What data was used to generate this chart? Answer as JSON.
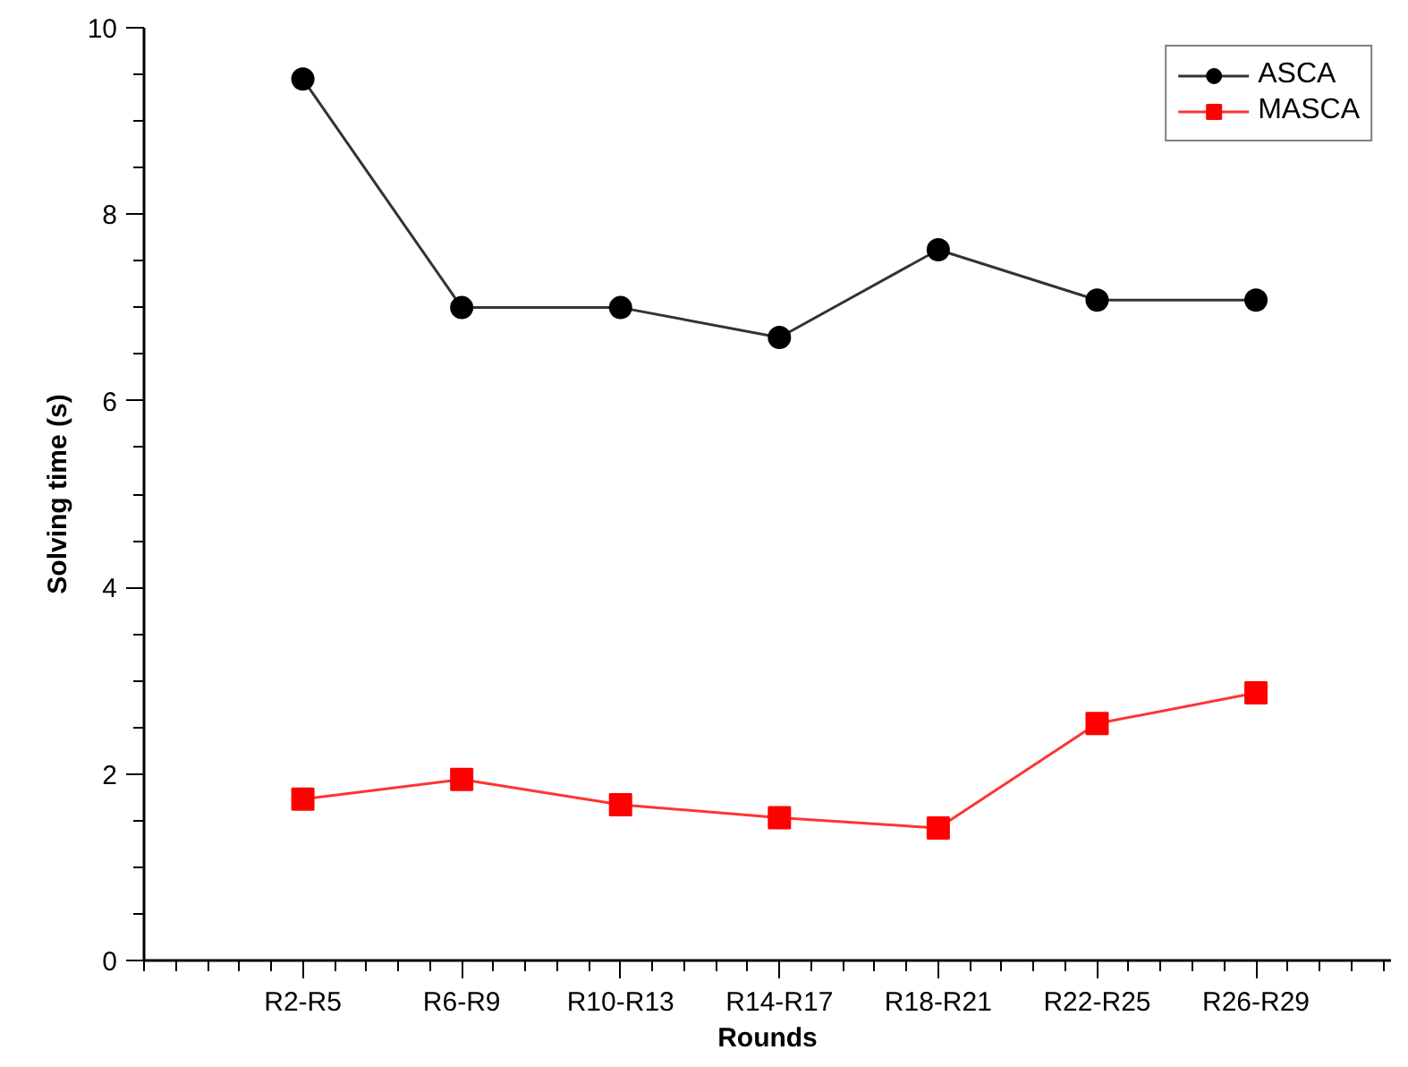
{
  "chart_data": {
    "type": "line",
    "xlabel": "Rounds",
    "ylabel": "Solving time (s)",
    "categories": [
      "R2-R5",
      "R6-R9",
      "R10-R13",
      "R14-R17",
      "R18-R21",
      "R22-R25",
      "R26-R29"
    ],
    "series": [
      {
        "name": "ASCA",
        "color": "#000000",
        "marker": "circle",
        "values": [
          9.45,
          7.0,
          7.0,
          6.68,
          7.62,
          7.08,
          7.08
        ]
      },
      {
        "name": "MASCA",
        "color": "#ff0000",
        "marker": "square",
        "values": [
          1.73,
          1.94,
          1.67,
          1.53,
          1.42,
          2.54,
          2.87
        ]
      }
    ],
    "ylim": [
      0,
      10
    ],
    "yticks": [
      0,
      2,
      4,
      6,
      8,
      10
    ],
    "grid": false,
    "legend": "top right",
    "line_style": "solid"
  }
}
